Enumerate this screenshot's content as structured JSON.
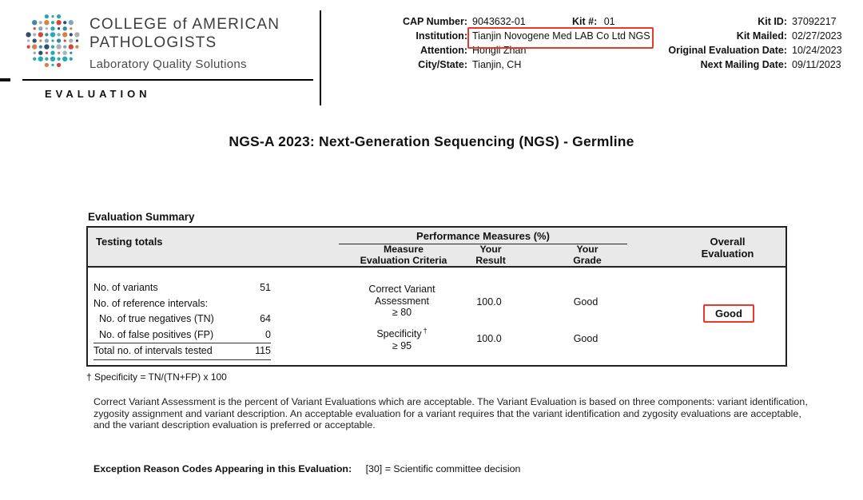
{
  "colors": {
    "highlight_red": "#e8392b",
    "header_gray": "#e9e9e9"
  },
  "header": {
    "org_name_line1": "COLLEGE of AMERICAN",
    "org_name_line2": "PATHOLOGISTS",
    "org_tagline": "Laboratory Quality Solutions",
    "section_label": "EVALUATION",
    "fields_left": [
      {
        "label": "CAP Number:",
        "value": "9043632-01"
      },
      {
        "label": "Institution:",
        "value": "Tianjin Novogene Med LAB Co Ltd NGS"
      },
      {
        "label": "Attention:",
        "value": "Hongli Zhan"
      },
      {
        "label": "City/State:",
        "value": "Tianjin, CH"
      }
    ],
    "kit_field": {
      "label": "Kit #:",
      "value": "01"
    },
    "fields_right": [
      {
        "label": "Kit ID:",
        "value": "37092217"
      },
      {
        "label": "Kit Mailed:",
        "value": "02/27/2023"
      },
      {
        "label": "Original Evaluation Date:",
        "value": "10/24/2023"
      },
      {
        "label": "Next Mailing Date:",
        "value": "09/11/2023"
      }
    ]
  },
  "title": "NGS-A 2023: Next-Generation Sequencing (NGS) - Germline",
  "summary": {
    "heading": "Evaluation Summary",
    "columns": {
      "testing_totals": "Testing totals",
      "performance": "Performance Measures (%)",
      "measure_line1": "Measure",
      "measure_line2": "Evaluation Criteria",
      "result_line1": "Your",
      "result_line2": "Result",
      "grade_line1": "Your",
      "grade_line2": "Grade",
      "overall_line1": "Overall",
      "overall_line2": "Evaluation"
    },
    "totals": [
      {
        "label": "No. of variants",
        "value": "51"
      },
      {
        "label": "No. of reference intervals:",
        "value": ""
      },
      {
        "label": "No. of true negatives (TN)",
        "value": "64"
      },
      {
        "label": "No. of false positives (FP)",
        "value": "0"
      },
      {
        "label": "Total no. of intervals tested",
        "value": "115"
      }
    ],
    "measures": [
      {
        "name_line1": "Correct Variant",
        "name_line2": "Assessment",
        "dagger": "",
        "criteria": "≥ 80",
        "result": "100.0",
        "grade": "Good"
      },
      {
        "name_line1": "Specificity",
        "name_line2": "",
        "dagger": "†",
        "criteria": "≥ 95",
        "result": "100.0",
        "grade": "Good"
      }
    ],
    "overall_grade": "Good"
  },
  "footnote": "† Specificity = TN/(TN+FP) x 100",
  "description": "Correct Variant Assessment is the percent of Variant Evaluations which are acceptable. The Variant Evaluation is based on three components: variant identification, zygosity assignment and variant description. An acceptable evaluation for a variant requires that the variant identification and zygosity evaluations are acceptable, and the variant description evaluation is preferred or acceptable.",
  "exception": {
    "label": "Exception Reason Codes Appearing in this Evaluation:",
    "value": "[30] = Scientific committee decision"
  }
}
